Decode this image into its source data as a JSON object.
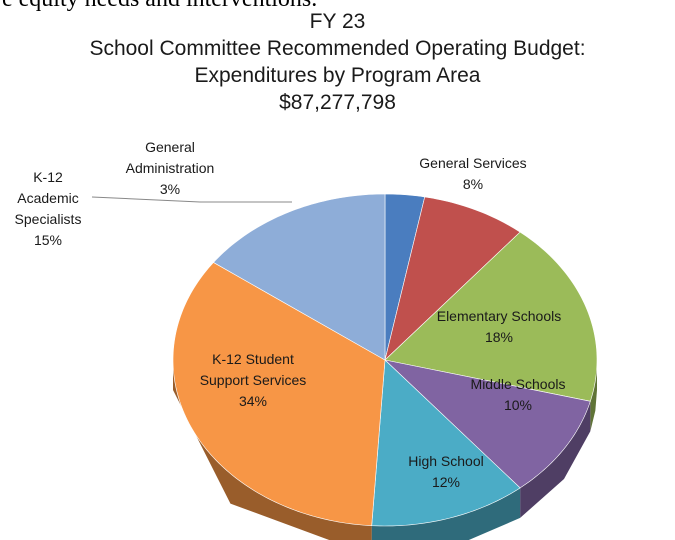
{
  "page": {
    "top_text": "e equity needs and interventions."
  },
  "chart_data": {
    "type": "pie",
    "title_lines": [
      "FY 23",
      "School Committee Recommended Operating Budget:",
      "Expenditures by Program Area",
      "$87,277,798"
    ],
    "slices": [
      {
        "name": "General Administration",
        "label_lines": [
          "General",
          "Administration"
        ],
        "percent_label": "3%",
        "value": 3,
        "color": "#4a7dbf"
      },
      {
        "name": "General Services",
        "label_lines": [
          "General Services"
        ],
        "percent_label": "8%",
        "value": 8,
        "color": "#c0504d"
      },
      {
        "name": "Elementary Schools",
        "label_lines": [
          "Elementary Schools"
        ],
        "percent_label": "18%",
        "value": 18,
        "color": "#9bbb59"
      },
      {
        "name": "Middle Schools",
        "label_lines": [
          "Middle Schools"
        ],
        "percent_label": "10%",
        "value": 10,
        "color": "#8064a2"
      },
      {
        "name": "High School",
        "label_lines": [
          "High School"
        ],
        "percent_label": "12%",
        "value": 12,
        "color": "#4bacc6"
      },
      {
        "name": "K-12 Student Support Services",
        "label_lines": [
          "K-12 Student",
          "Support Services"
        ],
        "percent_label": "34%",
        "value": 34,
        "color": "#f79646"
      },
      {
        "name": "K-12 Academic Specialists",
        "label_lines": [
          "K-12",
          "Academic",
          "Specialists"
        ],
        "percent_label": "15%",
        "value": 15,
        "color": "#8eadd8"
      }
    ]
  }
}
